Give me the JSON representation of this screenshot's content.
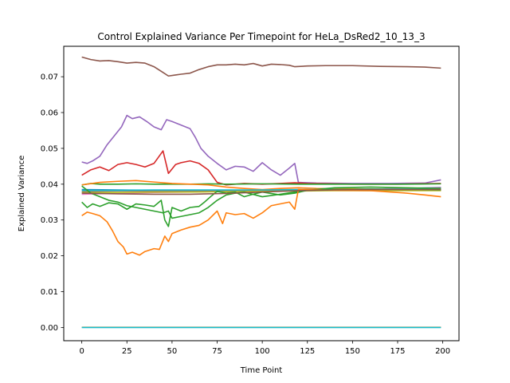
{
  "chart_data": {
    "type": "line",
    "title": "Control Explained Variance Per Timepoint for HeLa_DsRed2_10_13_3",
    "xlabel": "Time Point",
    "ylabel": "Explained Variance",
    "xlim": [
      -10,
      209
    ],
    "ylim": [
      -0.0037,
      0.0785
    ],
    "xticks": [
      0,
      25,
      50,
      75,
      100,
      125,
      150,
      175,
      200
    ],
    "yticks": [
      0.0,
      0.01,
      0.02,
      0.03,
      0.04,
      0.05,
      0.06,
      0.07
    ],
    "ytick_labels": [
      "0.00",
      "0.01",
      "0.02",
      "0.03",
      "0.04",
      "0.05",
      "0.06",
      "0.07"
    ],
    "grid": false,
    "legend": "none",
    "series": [
      {
        "color": "#8c564b",
        "points": [
          [
            0,
            0.0755
          ],
          [
            5,
            0.0748
          ],
          [
            10,
            0.0744
          ],
          [
            15,
            0.0745
          ],
          [
            20,
            0.0742
          ],
          [
            25,
            0.0738
          ],
          [
            30,
            0.074
          ],
          [
            35,
            0.0738
          ],
          [
            40,
            0.0728
          ],
          [
            45,
            0.0712
          ],
          [
            48,
            0.0702
          ],
          [
            52,
            0.0705
          ],
          [
            55,
            0.0707
          ],
          [
            60,
            0.071
          ],
          [
            65,
            0.072
          ],
          [
            70,
            0.0728
          ],
          [
            75,
            0.0733
          ],
          [
            80,
            0.0733
          ],
          [
            85,
            0.0735
          ],
          [
            90,
            0.0733
          ],
          [
            95,
            0.0737
          ],
          [
            100,
            0.073
          ],
          [
            105,
            0.0735
          ],
          [
            110,
            0.0734
          ],
          [
            115,
            0.0732
          ],
          [
            118,
            0.0728
          ],
          [
            125,
            0.073
          ],
          [
            135,
            0.0731
          ],
          [
            150,
            0.0731
          ],
          [
            165,
            0.0729
          ],
          [
            180,
            0.0728
          ],
          [
            190,
            0.0727
          ],
          [
            199,
            0.0724
          ]
        ]
      },
      {
        "color": "#9467bd",
        "points": [
          [
            0,
            0.0462
          ],
          [
            3,
            0.0458
          ],
          [
            6,
            0.0465
          ],
          [
            10,
            0.0478
          ],
          [
            14,
            0.051
          ],
          [
            18,
            0.0535
          ],
          [
            22,
            0.056
          ],
          [
            25,
            0.0592
          ],
          [
            28,
            0.0583
          ],
          [
            32,
            0.0588
          ],
          [
            36,
            0.0575
          ],
          [
            40,
            0.056
          ],
          [
            44,
            0.0552
          ],
          [
            47,
            0.058
          ],
          [
            50,
            0.0575
          ],
          [
            55,
            0.0565
          ],
          [
            60,
            0.0555
          ],
          [
            63,
            0.053
          ],
          [
            66,
            0.05
          ],
          [
            70,
            0.0478
          ],
          [
            75,
            0.0458
          ],
          [
            80,
            0.044
          ],
          [
            85,
            0.045
          ],
          [
            90,
            0.0448
          ],
          [
            95,
            0.0436
          ],
          [
            100,
            0.046
          ],
          [
            105,
            0.044
          ],
          [
            110,
            0.0425
          ],
          [
            115,
            0.0445
          ],
          [
            118,
            0.0458
          ],
          [
            120,
            0.0405
          ],
          [
            130,
            0.0403
          ],
          [
            150,
            0.0402
          ],
          [
            170,
            0.0402
          ],
          [
            190,
            0.0403
          ],
          [
            199,
            0.0412
          ]
        ]
      },
      {
        "color": "#d62728",
        "points": [
          [
            0,
            0.0425
          ],
          [
            5,
            0.044
          ],
          [
            10,
            0.0448
          ],
          [
            15,
            0.0438
          ],
          [
            20,
            0.0455
          ],
          [
            25,
            0.046
          ],
          [
            30,
            0.0455
          ],
          [
            35,
            0.0448
          ],
          [
            40,
            0.0458
          ],
          [
            45,
            0.0493
          ],
          [
            48,
            0.043
          ],
          [
            52,
            0.0455
          ],
          [
            55,
            0.046
          ],
          [
            60,
            0.0465
          ],
          [
            65,
            0.0458
          ],
          [
            70,
            0.044
          ],
          [
            75,
            0.0405
          ],
          [
            80,
            0.0398
          ],
          [
            90,
            0.0402
          ],
          [
            100,
            0.04
          ],
          [
            110,
            0.0402
          ],
          [
            118,
            0.0404
          ],
          [
            125,
            0.0402
          ],
          [
            150,
            0.04
          ],
          [
            175,
            0.04
          ],
          [
            199,
            0.0402
          ]
        ]
      },
      {
        "color": "#2ca02c",
        "points": [
          [
            0,
            0.0398
          ],
          [
            5,
            0.0402
          ],
          [
            10,
            0.04
          ],
          [
            20,
            0.04
          ],
          [
            30,
            0.0401
          ],
          [
            40,
            0.04
          ],
          [
            50,
            0.04
          ],
          [
            60,
            0.04
          ],
          [
            70,
            0.0401
          ],
          [
            80,
            0.04
          ],
          [
            100,
            0.0401
          ],
          [
            120,
            0.04
          ],
          [
            140,
            0.04
          ],
          [
            160,
            0.04
          ],
          [
            180,
            0.04
          ],
          [
            199,
            0.0401
          ]
        ]
      },
      {
        "color": "#ff7f0e",
        "points": [
          [
            0,
            0.0398
          ],
          [
            10,
            0.0405
          ],
          [
            20,
            0.0408
          ],
          [
            30,
            0.041
          ],
          [
            40,
            0.0406
          ],
          [
            50,
            0.0402
          ],
          [
            60,
            0.04
          ],
          [
            70,
            0.0398
          ],
          [
            80,
            0.0392
          ],
          [
            90,
            0.0388
          ],
          [
            100,
            0.0385
          ],
          [
            110,
            0.0388
          ],
          [
            120,
            0.039
          ],
          [
            130,
            0.0388
          ],
          [
            150,
            0.0387
          ],
          [
            170,
            0.0386
          ],
          [
            190,
            0.0384
          ],
          [
            199,
            0.0383
          ]
        ]
      },
      {
        "color": "#1f77b4",
        "points": [
          [
            0,
            0.0385
          ],
          [
            20,
            0.0384
          ],
          [
            40,
            0.0383
          ],
          [
            60,
            0.0382
          ],
          [
            80,
            0.0382
          ],
          [
            100,
            0.0383
          ],
          [
            120,
            0.0384
          ],
          [
            140,
            0.0385
          ],
          [
            160,
            0.0386
          ],
          [
            180,
            0.0388
          ],
          [
            199,
            0.0391
          ]
        ]
      },
      {
        "color": "#e377c2",
        "points": [
          [
            0,
            0.0372
          ],
          [
            20,
            0.0375
          ],
          [
            40,
            0.0377
          ],
          [
            60,
            0.0378
          ],
          [
            80,
            0.038
          ],
          [
            100,
            0.0381
          ],
          [
            120,
            0.0383
          ],
          [
            140,
            0.0385
          ],
          [
            160,
            0.0386
          ],
          [
            180,
            0.0388
          ],
          [
            199,
            0.039
          ]
        ]
      },
      {
        "color": "#7f7f7f",
        "points": [
          [
            0,
            0.038
          ],
          [
            20,
            0.0381
          ],
          [
            40,
            0.0381
          ],
          [
            60,
            0.0381
          ],
          [
            80,
            0.0381
          ],
          [
            100,
            0.0382
          ],
          [
            120,
            0.0383
          ],
          [
            140,
            0.0383
          ],
          [
            160,
            0.0383
          ],
          [
            180,
            0.0383
          ],
          [
            199,
            0.0383
          ]
        ]
      },
      {
        "color": "#bcbd22",
        "points": [
          [
            0,
            0.0377
          ],
          [
            20,
            0.0377
          ],
          [
            40,
            0.0378
          ],
          [
            60,
            0.0378
          ],
          [
            80,
            0.0379
          ],
          [
            100,
            0.038
          ],
          [
            120,
            0.0381
          ],
          [
            140,
            0.0382
          ],
          [
            160,
            0.0382
          ],
          [
            180,
            0.0382
          ],
          [
            199,
            0.0382
          ]
        ]
      },
      {
        "color": "#17becf",
        "points": [
          [
            0,
            0.0383
          ],
          [
            20,
            0.0383
          ],
          [
            40,
            0.0384
          ],
          [
            60,
            0.0384
          ],
          [
            80,
            0.0384
          ],
          [
            100,
            0.0384
          ],
          [
            120,
            0.0385
          ],
          [
            140,
            0.0385
          ],
          [
            160,
            0.0386
          ],
          [
            180,
            0.0386
          ],
          [
            199,
            0.0386
          ]
        ]
      },
      {
        "color": "#2ca02c",
        "points": [
          [
            0,
            0.035
          ],
          [
            3,
            0.0335
          ],
          [
            6,
            0.0345
          ],
          [
            10,
            0.0338
          ],
          [
            15,
            0.0348
          ],
          [
            20,
            0.0345
          ],
          [
            25,
            0.033
          ],
          [
            30,
            0.0345
          ],
          [
            35,
            0.0342
          ],
          [
            40,
            0.0338
          ],
          [
            44,
            0.0355
          ],
          [
            46,
            0.03
          ],
          [
            48,
            0.0282
          ],
          [
            50,
            0.0335
          ],
          [
            55,
            0.0325
          ],
          [
            60,
            0.0335
          ],
          [
            65,
            0.0338
          ],
          [
            68,
            0.035
          ],
          [
            72,
            0.0368
          ],
          [
            75,
            0.038
          ],
          [
            80,
            0.0375
          ],
          [
            85,
            0.0378
          ],
          [
            90,
            0.0365
          ],
          [
            95,
            0.0372
          ],
          [
            100,
            0.0378
          ],
          [
            110,
            0.037
          ],
          [
            118,
            0.0375
          ],
          [
            125,
            0.0383
          ],
          [
            140,
            0.039
          ],
          [
            160,
            0.0392
          ],
          [
            180,
            0.039
          ],
          [
            199,
            0.0388
          ]
        ]
      },
      {
        "color": "#2ca02c",
        "points": [
          [
            0,
            0.0395
          ],
          [
            5,
            0.0375
          ],
          [
            10,
            0.0365
          ],
          [
            15,
            0.0355
          ],
          [
            20,
            0.035
          ],
          [
            25,
            0.034
          ],
          [
            30,
            0.0335
          ],
          [
            35,
            0.033
          ],
          [
            40,
            0.0325
          ],
          [
            45,
            0.032
          ],
          [
            48,
            0.0325
          ],
          [
            50,
            0.0305
          ],
          [
            55,
            0.031
          ],
          [
            60,
            0.0315
          ],
          [
            65,
            0.032
          ],
          [
            70,
            0.0335
          ],
          [
            75,
            0.0355
          ],
          [
            80,
            0.037
          ],
          [
            85,
            0.0375
          ],
          [
            90,
            0.0378
          ],
          [
            100,
            0.0365
          ],
          [
            110,
            0.0372
          ],
          [
            118,
            0.0378
          ],
          [
            125,
            0.0383
          ],
          [
            140,
            0.0385
          ],
          [
            160,
            0.0386
          ],
          [
            180,
            0.0385
          ],
          [
            199,
            0.0384
          ]
        ]
      },
      {
        "color": "#ff7f0e",
        "points": [
          [
            0,
            0.0312
          ],
          [
            3,
            0.0322
          ],
          [
            6,
            0.0318
          ],
          [
            10,
            0.0312
          ],
          [
            14,
            0.0295
          ],
          [
            17,
            0.027
          ],
          [
            20,
            0.024
          ],
          [
            23,
            0.0225
          ],
          [
            25,
            0.0205
          ],
          [
            28,
            0.021
          ],
          [
            32,
            0.0202
          ],
          [
            35,
            0.0212
          ],
          [
            40,
            0.022
          ],
          [
            43,
            0.0218
          ],
          [
            46,
            0.0255
          ],
          [
            48,
            0.024
          ],
          [
            50,
            0.0262
          ],
          [
            55,
            0.0272
          ],
          [
            60,
            0.028
          ],
          [
            65,
            0.0285
          ],
          [
            70,
            0.03
          ],
          [
            75,
            0.0325
          ],
          [
            78,
            0.029
          ],
          [
            80,
            0.032
          ],
          [
            85,
            0.0315
          ],
          [
            90,
            0.0318
          ],
          [
            95,
            0.0305
          ],
          [
            100,
            0.032
          ],
          [
            105,
            0.034
          ],
          [
            110,
            0.0345
          ],
          [
            115,
            0.035
          ],
          [
            118,
            0.033
          ],
          [
            120,
            0.0385
          ],
          [
            140,
            0.0383
          ],
          [
            160,
            0.0382
          ],
          [
            180,
            0.0375
          ],
          [
            190,
            0.037
          ],
          [
            199,
            0.0365
          ]
        ]
      },
      {
        "color": "#8c564b",
        "points": [
          [
            0,
            0.0375
          ],
          [
            20,
            0.0373
          ],
          [
            40,
            0.0372
          ],
          [
            60,
            0.0372
          ],
          [
            80,
            0.0374
          ],
          [
            100,
            0.0378
          ],
          [
            120,
            0.0382
          ],
          [
            140,
            0.0384
          ],
          [
            160,
            0.0385
          ],
          [
            180,
            0.0385
          ],
          [
            199,
            0.0385
          ]
        ]
      },
      {
        "color": "#ff7f0e",
        "points": [
          [
            0,
            5e-05
          ],
          [
            100,
            5e-05
          ],
          [
            199,
            5e-05
          ]
        ]
      },
      {
        "color": "#17becf",
        "points": [
          [
            0,
            0.0
          ],
          [
            100,
            0.0
          ],
          [
            199,
            0.0
          ]
        ]
      }
    ]
  }
}
